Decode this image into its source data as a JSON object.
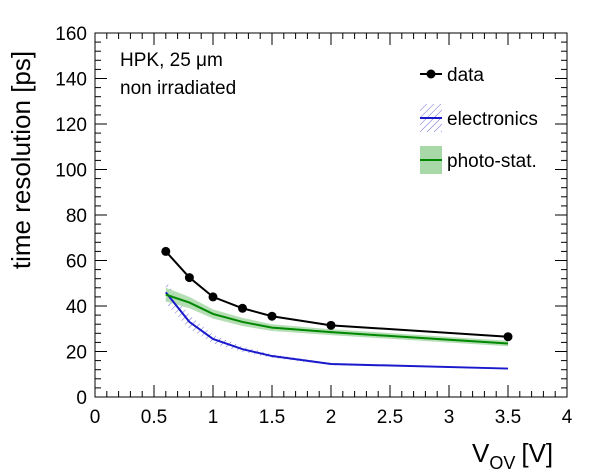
{
  "chart_data": {
    "type": "line",
    "xlabel": "V",
    "xlabel_sub": "OV",
    "xlabel_unit": "[V]",
    "ylabel": "time resolution [ps]",
    "xlim": [
      0,
      4
    ],
    "ylim": [
      0,
      160
    ],
    "x_ticks": [
      "0",
      "0.5",
      "1",
      "1.5",
      "2",
      "2.5",
      "3",
      "3.5",
      "4"
    ],
    "y_ticks": [
      "0",
      "20",
      "40",
      "60",
      "80",
      "100",
      "120",
      "140",
      "160"
    ],
    "annotations": [
      "HPK, 25 μm",
      "non irradiated"
    ],
    "legend_position": "top-right",
    "grid": false,
    "series": [
      {
        "name": "data",
        "style": "line-markers",
        "color": "#000000",
        "x": [
          0.6,
          0.8,
          1.0,
          1.25,
          1.5,
          2.0,
          3.5
        ],
        "y": [
          64,
          52.5,
          44,
          39,
          35.5,
          31.5,
          26.5
        ]
      },
      {
        "name": "electronics",
        "style": "line-hatched-band",
        "color": "#1a1acc",
        "band_color": "#6a6ad8",
        "x": [
          0.6,
          0.8,
          1.0,
          1.25,
          1.5,
          2.0,
          3.5
        ],
        "y": [
          46,
          33,
          25.5,
          21,
          18,
          14.5,
          12.5
        ],
        "band_halfwidth": [
          5,
          3,
          2,
          1.2,
          0.8,
          0.5,
          0.3
        ]
      },
      {
        "name": "photo-stat.",
        "style": "line-filled-band",
        "color": "#008800",
        "band_color": "#a8d8a8",
        "x": [
          0.6,
          0.8,
          1.0,
          1.25,
          1.5,
          2.0,
          3.5
        ],
        "y": [
          45,
          41.5,
          36.5,
          33,
          30.5,
          28.5,
          23.5
        ],
        "band_halfwidth": [
          3,
          2.5,
          2,
          1.8,
          1.5,
          1.3,
          1.2
        ]
      }
    ]
  }
}
